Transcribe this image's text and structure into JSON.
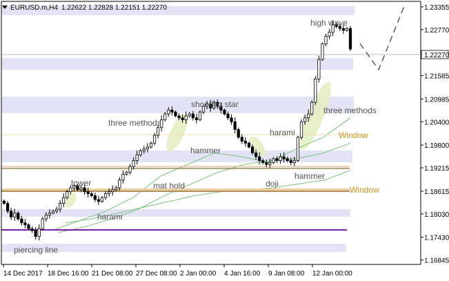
{
  "header": {
    "symbol": "EURUSD.m,H4",
    "ohlc": "1.22622 1.22828 1.22151 1.22270"
  },
  "chart_data": {
    "type": "candlestick",
    "price_axis": {
      "ticks": [
        "1.23355",
        "1.22770",
        "1.22185",
        "1.21585",
        "1.20985",
        "1.20400",
        "1.19800",
        "1.19215",
        "1.18615",
        "1.18030",
        "1.17430",
        "1.16845"
      ],
      "range": [
        1.1673,
        1.2346
      ],
      "current_price_label": "1.22270",
      "current_price": 1.2227
    },
    "time_axis": {
      "labels": [
        "14 Dec 2017",
        "18 Dec 16:00",
        "21 Dec 08:00",
        "27 Dec 08:00",
        "2 Jan 00:00",
        "4 Jan 16:00",
        "9 Jan 08:00",
        "12 Jan 00:00"
      ],
      "bar_count": 100
    },
    "closes": [
      1.183,
      1.181,
      1.1795,
      1.1805,
      1.179,
      1.178,
      1.1775,
      1.1765,
      1.176,
      1.1745,
      1.1765,
      1.179,
      1.18,
      1.1805,
      1.181,
      1.1815,
      1.183,
      1.1845,
      1.186,
      1.187,
      1.1875,
      1.1865,
      1.187,
      1.186,
      1.1855,
      1.185,
      1.184,
      1.1835,
      1.1845,
      1.1855,
      1.186,
      1.1865,
      1.187,
      1.189,
      1.1905,
      1.191,
      1.1925,
      1.194,
      1.1955,
      1.1965,
      1.197,
      1.1975,
      1.1985,
      1.2005,
      1.2025,
      1.2045,
      1.206,
      1.207,
      1.2065,
      1.2055,
      1.205,
      1.2045,
      1.2055,
      1.206,
      1.205,
      1.2045,
      1.2065,
      1.208,
      1.2085,
      1.2075,
      1.209,
      1.208,
      1.207,
      1.206,
      1.205,
      1.204,
      1.202,
      1.2,
      1.199,
      1.1985,
      1.1975,
      1.196,
      1.195,
      1.194,
      1.1935,
      1.193,
      1.1935,
      1.1945,
      1.194,
      1.195,
      1.1945,
      1.194,
      1.1935,
      1.194,
      1.2,
      1.204,
      1.205,
      1.206,
      1.209,
      1.215,
      1.22,
      1.224,
      1.226,
      1.227,
      1.229,
      1.2285,
      1.228,
      1.2275,
      1.228,
      1.2227
    ],
    "moving_averages": [
      {
        "values": [
          1.176,
          1.1785,
          1.181,
          1.1845,
          1.19,
          1.193,
          1.196,
          1.195,
          1.1935,
          1.197,
          1.2,
          1.205
        ]
      },
      {
        "values": [
          1.1755,
          1.177,
          1.179,
          1.1815,
          1.185,
          1.188,
          1.191,
          1.193,
          1.194,
          1.1945,
          1.196,
          1.1985
        ]
      },
      {
        "values": [
          1.178,
          1.179,
          1.1805,
          1.182,
          1.1835,
          1.185,
          1.186,
          1.1865,
          1.187,
          1.188,
          1.189,
          1.1915
        ]
      }
    ],
    "annotations": [
      "piercing line",
      "tower",
      "harami",
      "mat hold",
      "three methods",
      "shooting star",
      "hammer",
      "doji",
      "harami",
      "hammer",
      "three methods",
      "high wave"
    ],
    "windows": [
      {
        "label": "Window",
        "price": 1.2037
      },
      {
        "label": "Window",
        "price": 1.1884
      }
    ],
    "colors": {
      "band": "#e2e4f6",
      "window_line": "#e6b35a",
      "window_text": "#c8961e",
      "support_line": "#7b1fa2",
      "ma": "#7fbf7f",
      "highlight": "#e3efbf",
      "candle": "#000000"
    }
  }
}
